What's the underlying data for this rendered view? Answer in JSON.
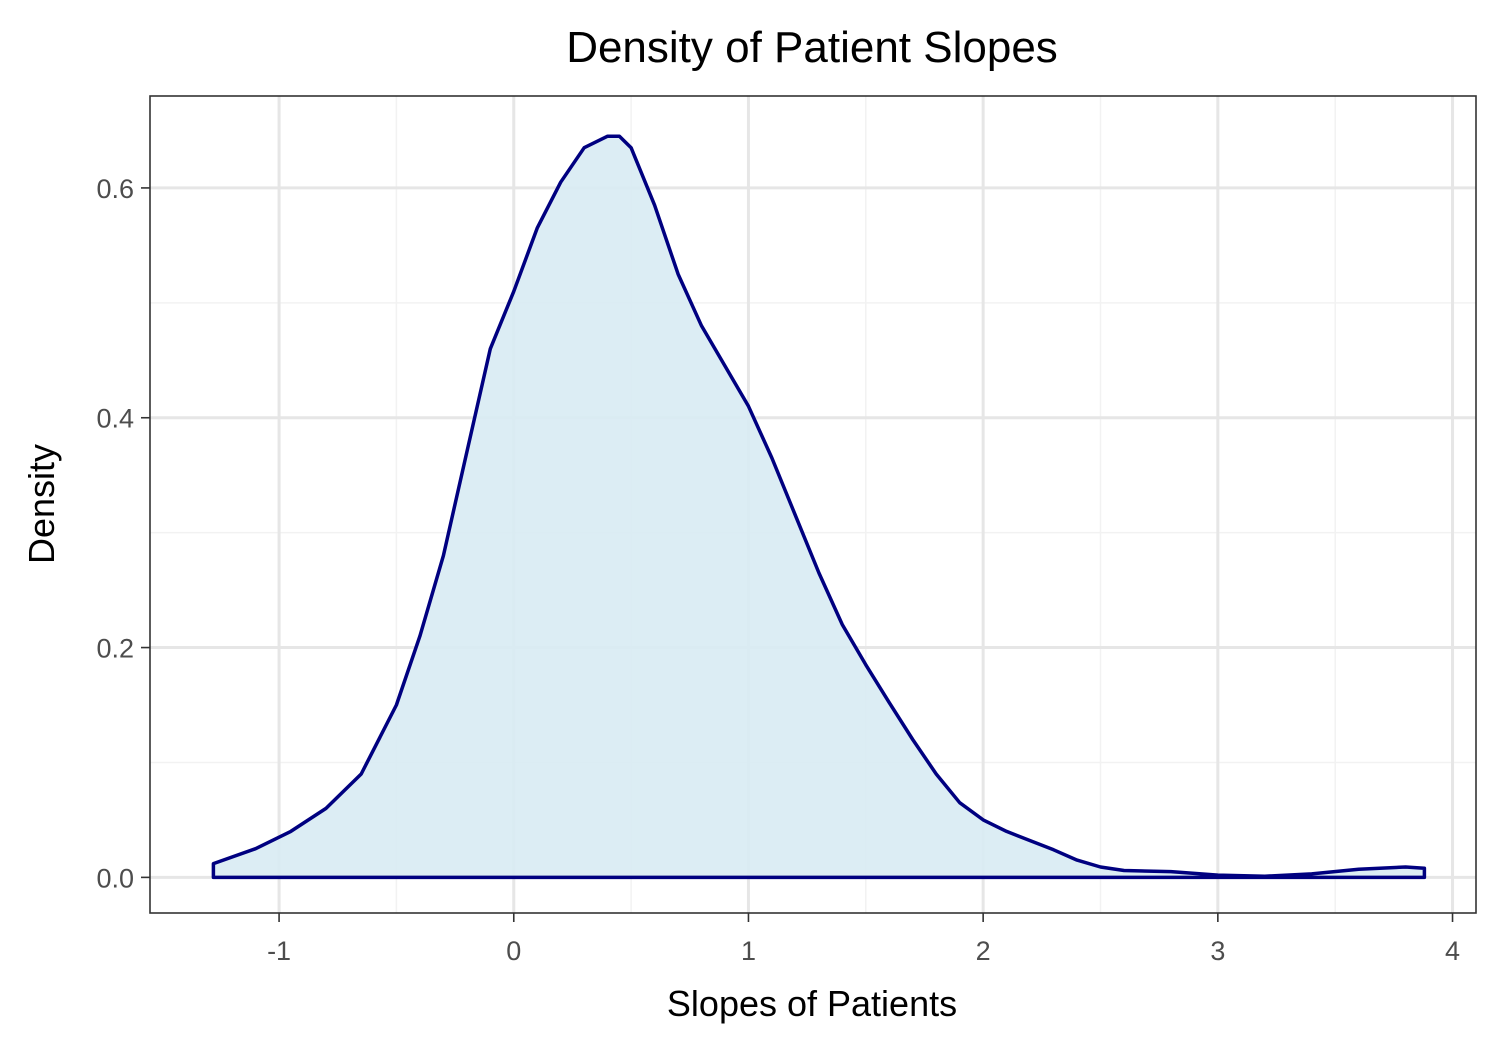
{
  "chart_data": {
    "type": "area",
    "title": "Density of Patient Slopes",
    "xlabel": "Slopes of Patients",
    "ylabel": "Density",
    "xlim": [
      -1.55,
      4.1
    ],
    "ylim": [
      -0.031,
      0.68
    ],
    "x_ticks": [
      -1,
      0,
      1,
      2,
      3,
      4
    ],
    "x_tick_labels": [
      "-1",
      "0",
      "1",
      "2",
      "3",
      "4"
    ],
    "y_ticks": [
      0.0,
      0.2,
      0.4,
      0.6
    ],
    "y_tick_labels": [
      "0.0",
      "0.2",
      "0.4",
      "0.6"
    ],
    "grid": true,
    "colors": {
      "fill": "#d8ebf3",
      "line": "#000080",
      "grid_major": "#e6e6e6",
      "grid_minor": "#f2f2f2",
      "panel_border": "#333333"
    },
    "series": [
      {
        "x": [
          -1.28,
          -1.1,
          -0.95,
          -0.8,
          -0.65,
          -0.5,
          -0.4,
          -0.3,
          -0.2,
          -0.1,
          0.0,
          0.1,
          0.2,
          0.3,
          0.4,
          0.45,
          0.5,
          0.6,
          0.7,
          0.8,
          0.9,
          1.0,
          1.1,
          1.2,
          1.3,
          1.4,
          1.5,
          1.6,
          1.7,
          1.8,
          1.9,
          2.0,
          2.1,
          2.2,
          2.3,
          2.4,
          2.5,
          2.6,
          2.8,
          3.0,
          3.2,
          3.4,
          3.6,
          3.8,
          3.88
        ],
        "y": [
          0.012,
          0.025,
          0.04,
          0.06,
          0.09,
          0.15,
          0.21,
          0.28,
          0.37,
          0.46,
          0.51,
          0.565,
          0.605,
          0.635,
          0.645,
          0.645,
          0.635,
          0.585,
          0.525,
          0.48,
          0.445,
          0.41,
          0.365,
          0.315,
          0.265,
          0.22,
          0.185,
          0.152,
          0.12,
          0.09,
          0.065,
          0.05,
          0.04,
          0.032,
          0.024,
          0.015,
          0.009,
          0.006,
          0.005,
          0.002,
          0.001,
          0.003,
          0.007,
          0.009,
          0.008
        ]
      }
    ]
  }
}
